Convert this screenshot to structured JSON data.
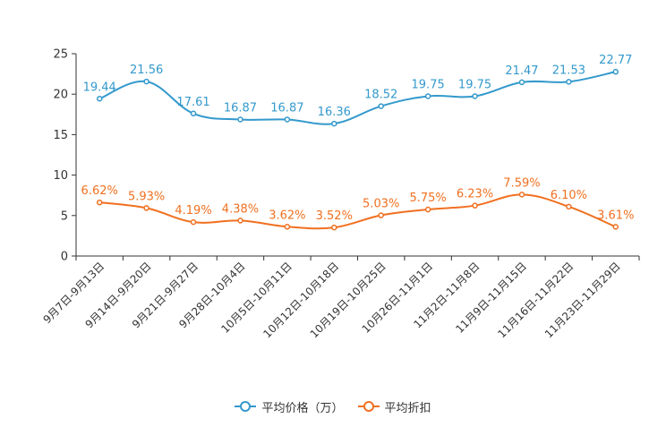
{
  "chart_data": {
    "type": "line",
    "categories": [
      "9月7日-9月13日",
      "9月14日-9月20日",
      "9月21日-9月27日",
      "9月28日-10月4日",
      "10月5日-10月11日",
      "10月12日-10月18日",
      "10月19日-10月25日",
      "10月26日-11月1日",
      "11月2日-11月8日",
      "11月9日-11月15日",
      "11月16日-11月22日",
      "11月23日-11月29日"
    ],
    "series": [
      {
        "name": "平均价格（万）",
        "color": "#3399cc",
        "values": [
          19.44,
          21.56,
          17.61,
          16.87,
          16.87,
          16.36,
          18.52,
          19.75,
          19.75,
          21.47,
          21.53,
          22.77
        ],
        "labels": [
          "19.44",
          "21.56",
          "17.61",
          "16.87",
          "16.87",
          "16.36",
          "18.52",
          "19.75",
          "19.75",
          "21.47",
          "21.53",
          "22.77"
        ]
      },
      {
        "name": "平均折扣",
        "color": "#f07020",
        "values": [
          6.62,
          5.93,
          4.19,
          4.38,
          3.62,
          3.52,
          5.03,
          5.75,
          6.23,
          7.59,
          6.1,
          3.61
        ],
        "labels": [
          "6.62%",
          "5.93%",
          "4.19%",
          "4.38%",
          "3.62%",
          "3.52%",
          "5.03%",
          "5.75%",
          "6.23%",
          "7.59%",
          "6.10%",
          "3.61%"
        ]
      }
    ],
    "ylim": [
      0,
      25
    ],
    "yticks": [
      "0",
      "5",
      "10",
      "15",
      "20",
      "25"
    ],
    "xlabel": "",
    "ylabel": "",
    "legend_position": "bottom-center",
    "smooth": true
  }
}
